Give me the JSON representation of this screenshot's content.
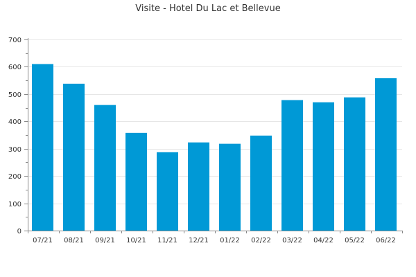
{
  "chart_data": {
    "type": "bar",
    "title": "Visite - Hotel Du Lac et Bellevue",
    "xlabel": "",
    "ylabel": "",
    "categories": [
      "07/21",
      "08/21",
      "09/21",
      "10/21",
      "11/21",
      "12/21",
      "01/22",
      "02/22",
      "03/22",
      "04/22",
      "05/22",
      "06/22"
    ],
    "values": [
      610,
      538,
      460,
      358,
      287,
      323,
      318,
      348,
      478,
      470,
      488,
      558
    ],
    "ylim": [
      0,
      700
    ],
    "yticks": [
      "0",
      "100",
      "200",
      "300",
      "400",
      "500",
      "600",
      "700"
    ],
    "grid": true,
    "legend": "none",
    "colors": {
      "bar": "#0099d6",
      "grid": "#e6e6e6",
      "axis": "#888888",
      "text": "#333333"
    }
  }
}
